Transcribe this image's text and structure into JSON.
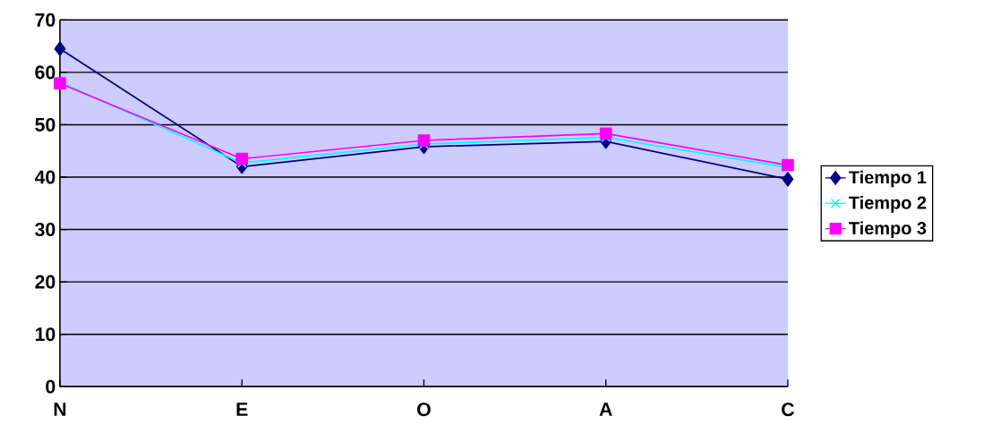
{
  "chart_data": {
    "type": "line",
    "categories": [
      "N",
      "E",
      "O",
      "A",
      "C"
    ],
    "series": [
      {
        "name": "Tiempo 1",
        "color": "#000080",
        "marker": "diamond",
        "values": [
          64.5,
          42.0,
          45.8,
          46.8,
          39.6
        ]
      },
      {
        "name": "Tiempo 2",
        "color": "#00ffff",
        "marker": "cross",
        "values": [
          58.1,
          42.7,
          46.3,
          47.6,
          41.8
        ]
      },
      {
        "name": "Tiempo 3",
        "color": "#ff00ff",
        "marker": "square",
        "values": [
          57.9,
          43.5,
          47.0,
          48.3,
          42.3
        ]
      }
    ],
    "ylim": [
      0,
      70
    ],
    "yticks": [
      0,
      10,
      20,
      30,
      40,
      50,
      60,
      70
    ],
    "grid": "y",
    "legend": "right"
  }
}
